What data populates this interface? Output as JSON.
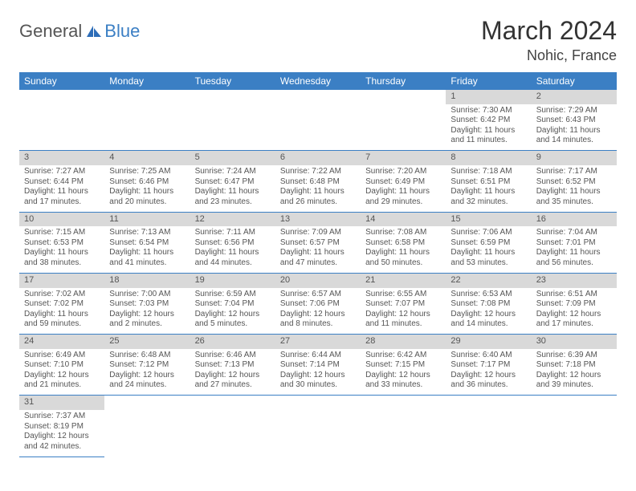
{
  "logo": {
    "general": "General",
    "blue": "Blue"
  },
  "title": "March 2024",
  "location": "Nohic, France",
  "colors": {
    "header_bg": "#3b7fc4",
    "header_fg": "#ffffff",
    "daynum_bg": "#d9d9d9",
    "border": "#3b7fc4",
    "text": "#555555"
  },
  "weekdays": [
    "Sunday",
    "Monday",
    "Tuesday",
    "Wednesday",
    "Thursday",
    "Friday",
    "Saturday"
  ],
  "weeks": [
    [
      null,
      null,
      null,
      null,
      null,
      {
        "n": "1",
        "sr": "Sunrise: 7:30 AM",
        "ss": "Sunset: 6:42 PM",
        "d1": "Daylight: 11 hours",
        "d2": "and 11 minutes."
      },
      {
        "n": "2",
        "sr": "Sunrise: 7:29 AM",
        "ss": "Sunset: 6:43 PM",
        "d1": "Daylight: 11 hours",
        "d2": "and 14 minutes."
      }
    ],
    [
      {
        "n": "3",
        "sr": "Sunrise: 7:27 AM",
        "ss": "Sunset: 6:44 PM",
        "d1": "Daylight: 11 hours",
        "d2": "and 17 minutes."
      },
      {
        "n": "4",
        "sr": "Sunrise: 7:25 AM",
        "ss": "Sunset: 6:46 PM",
        "d1": "Daylight: 11 hours",
        "d2": "and 20 minutes."
      },
      {
        "n": "5",
        "sr": "Sunrise: 7:24 AM",
        "ss": "Sunset: 6:47 PM",
        "d1": "Daylight: 11 hours",
        "d2": "and 23 minutes."
      },
      {
        "n": "6",
        "sr": "Sunrise: 7:22 AM",
        "ss": "Sunset: 6:48 PM",
        "d1": "Daylight: 11 hours",
        "d2": "and 26 minutes."
      },
      {
        "n": "7",
        "sr": "Sunrise: 7:20 AM",
        "ss": "Sunset: 6:49 PM",
        "d1": "Daylight: 11 hours",
        "d2": "and 29 minutes."
      },
      {
        "n": "8",
        "sr": "Sunrise: 7:18 AM",
        "ss": "Sunset: 6:51 PM",
        "d1": "Daylight: 11 hours",
        "d2": "and 32 minutes."
      },
      {
        "n": "9",
        "sr": "Sunrise: 7:17 AM",
        "ss": "Sunset: 6:52 PM",
        "d1": "Daylight: 11 hours",
        "d2": "and 35 minutes."
      }
    ],
    [
      {
        "n": "10",
        "sr": "Sunrise: 7:15 AM",
        "ss": "Sunset: 6:53 PM",
        "d1": "Daylight: 11 hours",
        "d2": "and 38 minutes."
      },
      {
        "n": "11",
        "sr": "Sunrise: 7:13 AM",
        "ss": "Sunset: 6:54 PM",
        "d1": "Daylight: 11 hours",
        "d2": "and 41 minutes."
      },
      {
        "n": "12",
        "sr": "Sunrise: 7:11 AM",
        "ss": "Sunset: 6:56 PM",
        "d1": "Daylight: 11 hours",
        "d2": "and 44 minutes."
      },
      {
        "n": "13",
        "sr": "Sunrise: 7:09 AM",
        "ss": "Sunset: 6:57 PM",
        "d1": "Daylight: 11 hours",
        "d2": "and 47 minutes."
      },
      {
        "n": "14",
        "sr": "Sunrise: 7:08 AM",
        "ss": "Sunset: 6:58 PM",
        "d1": "Daylight: 11 hours",
        "d2": "and 50 minutes."
      },
      {
        "n": "15",
        "sr": "Sunrise: 7:06 AM",
        "ss": "Sunset: 6:59 PM",
        "d1": "Daylight: 11 hours",
        "d2": "and 53 minutes."
      },
      {
        "n": "16",
        "sr": "Sunrise: 7:04 AM",
        "ss": "Sunset: 7:01 PM",
        "d1": "Daylight: 11 hours",
        "d2": "and 56 minutes."
      }
    ],
    [
      {
        "n": "17",
        "sr": "Sunrise: 7:02 AM",
        "ss": "Sunset: 7:02 PM",
        "d1": "Daylight: 11 hours",
        "d2": "and 59 minutes."
      },
      {
        "n": "18",
        "sr": "Sunrise: 7:00 AM",
        "ss": "Sunset: 7:03 PM",
        "d1": "Daylight: 12 hours",
        "d2": "and 2 minutes."
      },
      {
        "n": "19",
        "sr": "Sunrise: 6:59 AM",
        "ss": "Sunset: 7:04 PM",
        "d1": "Daylight: 12 hours",
        "d2": "and 5 minutes."
      },
      {
        "n": "20",
        "sr": "Sunrise: 6:57 AM",
        "ss": "Sunset: 7:06 PM",
        "d1": "Daylight: 12 hours",
        "d2": "and 8 minutes."
      },
      {
        "n": "21",
        "sr": "Sunrise: 6:55 AM",
        "ss": "Sunset: 7:07 PM",
        "d1": "Daylight: 12 hours",
        "d2": "and 11 minutes."
      },
      {
        "n": "22",
        "sr": "Sunrise: 6:53 AM",
        "ss": "Sunset: 7:08 PM",
        "d1": "Daylight: 12 hours",
        "d2": "and 14 minutes."
      },
      {
        "n": "23",
        "sr": "Sunrise: 6:51 AM",
        "ss": "Sunset: 7:09 PM",
        "d1": "Daylight: 12 hours",
        "d2": "and 17 minutes."
      }
    ],
    [
      {
        "n": "24",
        "sr": "Sunrise: 6:49 AM",
        "ss": "Sunset: 7:10 PM",
        "d1": "Daylight: 12 hours",
        "d2": "and 21 minutes."
      },
      {
        "n": "25",
        "sr": "Sunrise: 6:48 AM",
        "ss": "Sunset: 7:12 PM",
        "d1": "Daylight: 12 hours",
        "d2": "and 24 minutes."
      },
      {
        "n": "26",
        "sr": "Sunrise: 6:46 AM",
        "ss": "Sunset: 7:13 PM",
        "d1": "Daylight: 12 hours",
        "d2": "and 27 minutes."
      },
      {
        "n": "27",
        "sr": "Sunrise: 6:44 AM",
        "ss": "Sunset: 7:14 PM",
        "d1": "Daylight: 12 hours",
        "d2": "and 30 minutes."
      },
      {
        "n": "28",
        "sr": "Sunrise: 6:42 AM",
        "ss": "Sunset: 7:15 PM",
        "d1": "Daylight: 12 hours",
        "d2": "and 33 minutes."
      },
      {
        "n": "29",
        "sr": "Sunrise: 6:40 AM",
        "ss": "Sunset: 7:17 PM",
        "d1": "Daylight: 12 hours",
        "d2": "and 36 minutes."
      },
      {
        "n": "30",
        "sr": "Sunrise: 6:39 AM",
        "ss": "Sunset: 7:18 PM",
        "d1": "Daylight: 12 hours",
        "d2": "and 39 minutes."
      }
    ],
    [
      {
        "n": "31",
        "sr": "Sunrise: 7:37 AM",
        "ss": "Sunset: 8:19 PM",
        "d1": "Daylight: 12 hours",
        "d2": "and 42 minutes."
      },
      null,
      null,
      null,
      null,
      null,
      null
    ]
  ]
}
